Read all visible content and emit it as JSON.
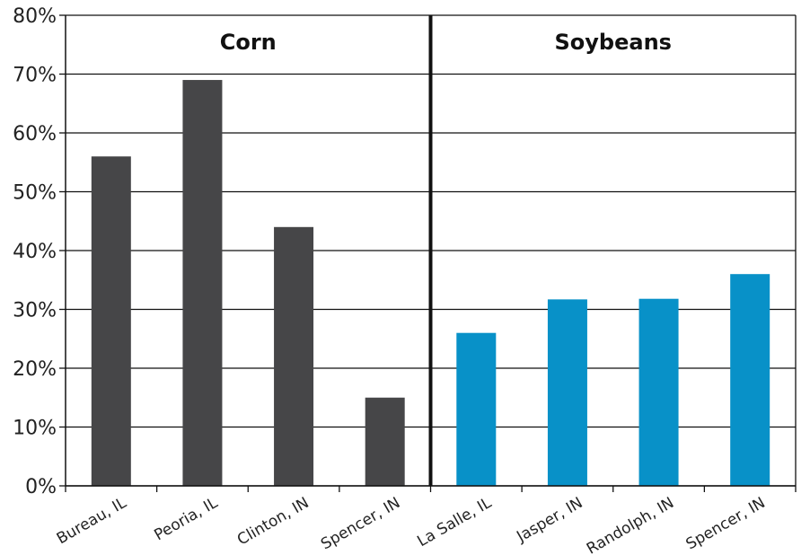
{
  "chart_data": {
    "type": "bar",
    "title": "",
    "xlabel": "",
    "ylabel": "",
    "ylim": [
      0,
      80
    ],
    "yticks": [
      "0%",
      "10%",
      "20%",
      "30%",
      "40%",
      "50%",
      "60%",
      "70%",
      "80%"
    ],
    "grid": true,
    "panels": [
      {
        "name": "Corn",
        "color": "#464648",
        "categories": [
          "Bureau, IL",
          "Peoria, IL",
          "Clinton, IN",
          "Spencer, IN"
        ],
        "values": [
          56,
          69,
          44,
          15
        ]
      },
      {
        "name": "Soybeans",
        "color": "#0891c8",
        "categories": [
          "La Salle, IL",
          "Jasper, IN",
          "Randolph, IN",
          "Spencer, IN"
        ],
        "values": [
          26,
          31.7,
          31.8,
          36
        ]
      }
    ]
  }
}
